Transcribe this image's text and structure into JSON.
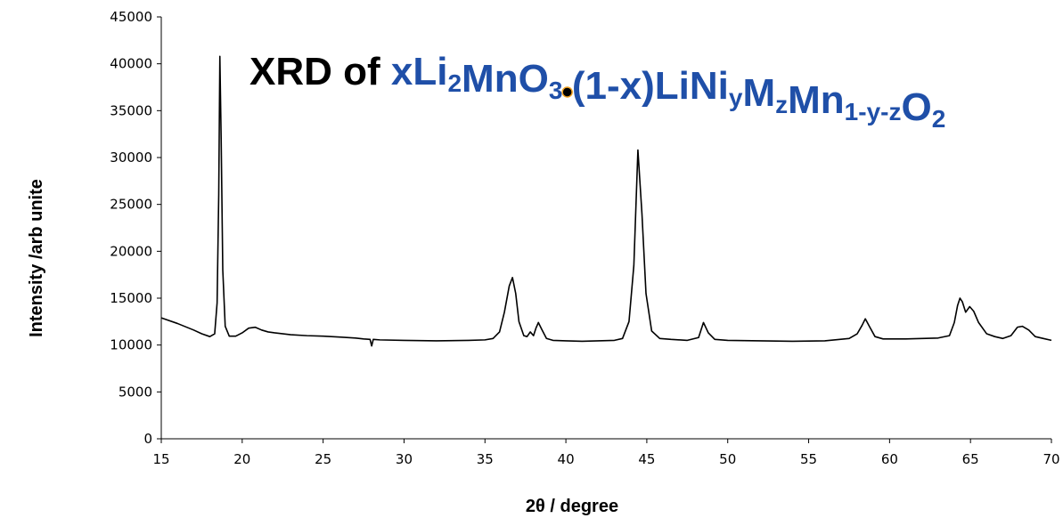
{
  "chart_data": {
    "type": "line",
    "title": {
      "prefix": "XRD of ",
      "formula": "xLi2MnO3•(1-x)LiNiyMzMn1-y-zO2",
      "prefix_color": "#000000",
      "formula_color": "#1f4fa8",
      "dot_color": "#000000",
      "dot_ring_color": "#f0a020"
    },
    "xlabel": "2θ / degree",
    "ylabel": "Intensity /arb unite",
    "xlim": [
      15,
      70
    ],
    "ylim": [
      0,
      45000
    ],
    "x_ticks": [
      15,
      20,
      25,
      30,
      35,
      40,
      45,
      50,
      55,
      60,
      65,
      70
    ],
    "y_ticks": [
      0,
      5000,
      10000,
      15000,
      20000,
      25000,
      30000,
      35000,
      40000,
      45000
    ],
    "grid": false,
    "legend": "none",
    "line_color": "#000000",
    "series": [
      {
        "x": [
          15.0,
          16.0,
          17.0,
          17.5,
          18.0,
          18.3,
          18.45,
          18.55,
          18.62,
          18.7,
          18.8,
          18.95,
          19.2,
          19.6,
          20.0,
          20.4,
          20.8,
          21.2,
          21.6,
          22.0,
          23.0,
          24.0,
          25.0,
          26.0,
          27.0,
          27.5,
          27.9,
          28.0,
          28.1,
          28.5,
          30.0,
          32.0,
          34.0,
          35.0,
          35.5,
          35.9,
          36.2,
          36.5,
          36.7,
          36.9,
          37.1,
          37.4,
          37.6,
          37.8,
          38.0,
          38.15,
          38.3,
          38.5,
          38.8,
          39.2,
          40.0,
          41.0,
          42.0,
          43.0,
          43.5,
          43.9,
          44.2,
          44.45,
          44.7,
          44.95,
          45.3,
          45.8,
          46.5,
          47.5,
          48.2,
          48.5,
          48.8,
          49.2,
          50.0,
          52.0,
          54.0,
          56.0,
          57.5,
          58.0,
          58.3,
          58.5,
          58.75,
          59.1,
          59.6,
          61.0,
          62.0,
          63.0,
          63.7,
          64.0,
          64.2,
          64.35,
          64.5,
          64.7,
          64.95,
          65.2,
          65.5,
          66.0,
          66.5,
          67.0,
          67.5,
          67.9,
          68.2,
          68.6,
          69.0,
          69.5,
          70.0
        ],
        "y": [
          12900,
          12300,
          11600,
          11200,
          10900,
          11200,
          14500,
          26000,
          40800,
          32000,
          18000,
          12000,
          10950,
          10950,
          11300,
          11800,
          11900,
          11600,
          11400,
          11300,
          11100,
          11000,
          10950,
          10850,
          10750,
          10650,
          10600,
          9900,
          10600,
          10550,
          10500,
          10450,
          10500,
          10550,
          10700,
          11400,
          13500,
          16300,
          17200,
          15500,
          12500,
          11000,
          10900,
          11400,
          11000,
          11800,
          12400,
          11700,
          10700,
          10500,
          10450,
          10400,
          10450,
          10500,
          10700,
          12500,
          18500,
          30800,
          24000,
          15500,
          11500,
          10700,
          10600,
          10500,
          10800,
          12400,
          11300,
          10600,
          10500,
          10450,
          10400,
          10450,
          10700,
          11200,
          12100,
          12800,
          12000,
          10900,
          10650,
          10650,
          10700,
          10750,
          11000,
          12400,
          14200,
          15000,
          14600,
          13500,
          14100,
          13600,
          12400,
          11200,
          10900,
          10700,
          11000,
          11900,
          12000,
          11600,
          10900,
          10700,
          10500
        ]
      }
    ]
  }
}
